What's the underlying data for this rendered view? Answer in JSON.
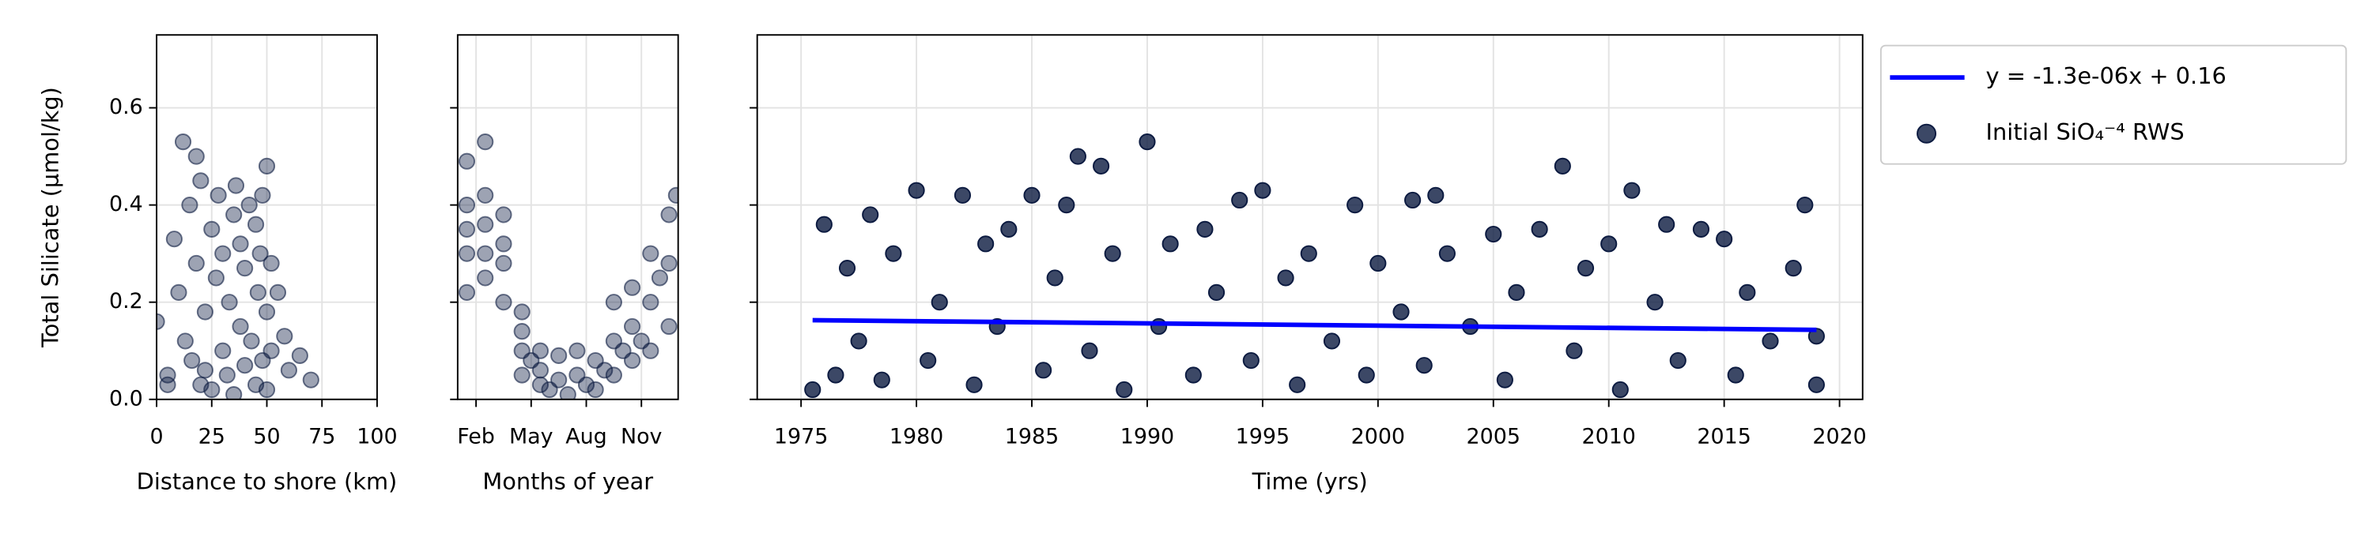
{
  "chart_data": [
    {
      "type": "scatter",
      "xlabel": "Distance to shore (km)",
      "ylabel": "Total Silicate (µmol/kg)",
      "color": "#0b1a40",
      "alpha": 0.4,
      "xlim": [
        0,
        100
      ],
      "xticks": [
        0,
        25,
        50,
        75,
        100
      ],
      "ylim": [
        0,
        0.75
      ],
      "yticks": [
        {
          "value": 0,
          "label": "0.0"
        },
        0.2,
        0.4,
        0.6
      ],
      "grid": true,
      "x": [
        0,
        5,
        5,
        8,
        10,
        12,
        13,
        15,
        16,
        18,
        18,
        20,
        20,
        22,
        22,
        25,
        25,
        27,
        28,
        30,
        30,
        32,
        33,
        35,
        35,
        36,
        38,
        38,
        40,
        40,
        42,
        43,
        45,
        45,
        46,
        47,
        48,
        48,
        50,
        50,
        50,
        52,
        52,
        55,
        58,
        60,
        65,
        70
      ],
      "values": [
        0.16,
        0.05,
        0.03,
        0.33,
        0.22,
        0.53,
        0.12,
        0.4,
        0.08,
        0.5,
        0.28,
        0.03,
        0.45,
        0.18,
        0.06,
        0.35,
        0.02,
        0.25,
        0.42,
        0.1,
        0.3,
        0.05,
        0.2,
        0.38,
        0.01,
        0.44,
        0.15,
        0.32,
        0.07,
        0.27,
        0.4,
        0.12,
        0.36,
        0.03,
        0.22,
        0.3,
        0.42,
        0.08,
        0.48,
        0.18,
        0.02,
        0.28,
        0.1,
        0.22,
        0.13,
        0.06,
        0.09,
        0.04
      ]
    },
    {
      "type": "scatter",
      "xlabel": "Months of year",
      "color": "#0b1a40",
      "alpha": 0.4,
      "xlim": [
        1,
        13
      ],
      "xticks": [
        {
          "value": 2,
          "label": "Feb"
        },
        {
          "value": 5,
          "label": "May"
        },
        {
          "value": 8,
          "label": "Aug"
        },
        {
          "value": 11,
          "label": "Nov"
        }
      ],
      "ylim": [
        0,
        0.75
      ],
      "grid": true,
      "x": [
        1.5,
        1.5,
        1.5,
        1.5,
        1.5,
        2.5,
        2.5,
        2.5,
        2.5,
        2.5,
        3.5,
        3.5,
        3.5,
        3.5,
        4.5,
        4.5,
        4.5,
        4.5,
        5.0,
        5.5,
        5.5,
        5.5,
        6.0,
        6.5,
        6.5,
        7.0,
        7.5,
        7.5,
        8.0,
        8.5,
        8.5,
        9.0,
        9.5,
        9.5,
        9.5,
        10.0,
        10.5,
        10.5,
        10.5,
        11.0,
        11.5,
        11.5,
        11.5,
        12.0,
        12.5,
        12.5,
        12.5,
        12.9
      ],
      "values": [
        0.49,
        0.4,
        0.3,
        0.22,
        0.35,
        0.53,
        0.42,
        0.3,
        0.25,
        0.36,
        0.38,
        0.28,
        0.2,
        0.32,
        0.18,
        0.1,
        0.05,
        0.14,
        0.08,
        0.1,
        0.03,
        0.06,
        0.02,
        0.09,
        0.04,
        0.01,
        0.1,
        0.05,
        0.03,
        0.08,
        0.02,
        0.06,
        0.12,
        0.05,
        0.2,
        0.1,
        0.23,
        0.15,
        0.08,
        0.12,
        0.3,
        0.2,
        0.1,
        0.25,
        0.38,
        0.28,
        0.15,
        0.42
      ]
    },
    {
      "type": "scatter",
      "xlabel": "Time (yrs)",
      "legend": "outside",
      "grid": true,
      "xlim": [
        1973.1,
        2021
      ],
      "xticks": [
        1975,
        1980,
        1985,
        1990,
        1995,
        2000,
        2005,
        2010,
        2015,
        2020
      ],
      "ylim": [
        0,
        0.75
      ],
      "series": [
        {
          "name": "y = -1.3e-06x + 0.16",
          "type": "line",
          "color": "#0000ff",
          "x": [
            1975.5,
            2019
          ],
          "values": [
            0.163,
            0.143
          ]
        },
        {
          "name": "Initial SiO₄⁻⁴ RWS",
          "type": "scatter",
          "color": "#0b1a40",
          "alpha": 0.8,
          "x": [
            1975.5,
            1976,
            1976.5,
            1977,
            1977.5,
            1978,
            1978.5,
            1979,
            1980,
            1980.5,
            1981,
            1982,
            1982.5,
            1983,
            1983.5,
            1984,
            1985,
            1985.5,
            1986,
            1986.5,
            1987,
            1987.5,
            1988,
            1988.5,
            1989,
            1990,
            1990.5,
            1991,
            1992,
            1992.5,
            1993,
            1994,
            1994.5,
            1995,
            1996,
            1996.5,
            1997,
            1998,
            1999,
            1999.5,
            2000,
            2001,
            2001.5,
            2002,
            2002.5,
            2003,
            2004,
            2005,
            2005.5,
            2006,
            2007,
            2008,
            2008.5,
            2009,
            2010,
            2010.5,
            2011,
            2012,
            2012.5,
            2013,
            2014,
            2015,
            2015.5,
            2016,
            2017,
            2018,
            2018.5,
            2019,
            2019
          ],
          "values": [
            0.02,
            0.36,
            0.05,
            0.27,
            0.12,
            0.38,
            0.04,
            0.3,
            0.43,
            0.08,
            0.2,
            0.42,
            0.03,
            0.32,
            0.15,
            0.35,
            0.42,
            0.06,
            0.25,
            0.4,
            0.5,
            0.1,
            0.48,
            0.3,
            0.02,
            0.53,
            0.15,
            0.32,
            0.05,
            0.35,
            0.22,
            0.41,
            0.08,
            0.43,
            0.25,
            0.03,
            0.3,
            0.12,
            0.4,
            0.05,
            0.28,
            0.18,
            0.41,
            0.07,
            0.42,
            0.3,
            0.15,
            0.34,
            0.04,
            0.22,
            0.35,
            0.48,
            0.1,
            0.27,
            0.32,
            0.02,
            0.43,
            0.2,
            0.36,
            0.08,
            0.35,
            0.33,
            0.05,
            0.22,
            0.12,
            0.27,
            0.4,
            0.13,
            0.03
          ]
        }
      ]
    }
  ]
}
